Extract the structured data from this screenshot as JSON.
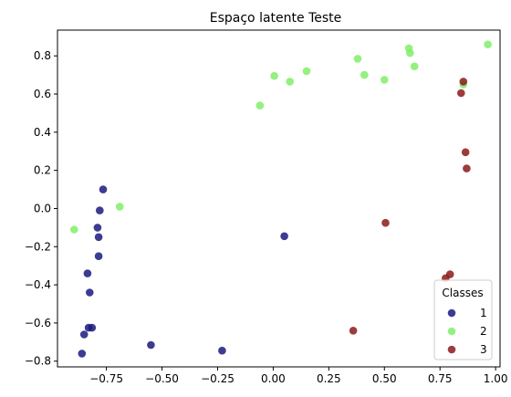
{
  "chart_data": {
    "type": "scatter",
    "title": "Espaço latente Teste",
    "xlabel": "",
    "ylabel": "",
    "xlim": [
      -0.97,
      1.02
    ],
    "ylim": [
      -0.83,
      0.935
    ],
    "xticks": [
      -0.75,
      -0.5,
      -0.25,
      0.0,
      0.25,
      0.5,
      0.75,
      1.0
    ],
    "xtick_labels": [
      "−0.75",
      "−0.50",
      "−0.25",
      "0.00",
      "0.25",
      "0.50",
      "0.75",
      "1.00"
    ],
    "yticks": [
      -0.8,
      -0.6,
      -0.4,
      -0.2,
      0.0,
      0.2,
      0.4,
      0.6,
      0.8
    ],
    "ytick_labels": [
      "−0.8",
      "−0.6",
      "−0.4",
      "−0.2",
      "0.0",
      "0.2",
      "0.4",
      "0.6",
      "0.8"
    ],
    "grid": false,
    "legend": {
      "title": "Classes",
      "placement": "lower-right"
    },
    "series": [
      {
        "name": "1",
        "color": "#1a1a80",
        "points": [
          [
            -0.765,
            0.1
          ],
          [
            -0.78,
            -0.01
          ],
          [
            -0.79,
            -0.1
          ],
          [
            -0.785,
            -0.15
          ],
          [
            -0.785,
            -0.25
          ],
          [
            -0.835,
            -0.34
          ],
          [
            -0.825,
            -0.44
          ],
          [
            -0.83,
            -0.625
          ],
          [
            -0.815,
            -0.625
          ],
          [
            -0.85,
            -0.66
          ],
          [
            -0.86,
            -0.76
          ],
          [
            -0.55,
            -0.715
          ],
          [
            -0.23,
            -0.745
          ],
          [
            0.05,
            -0.145
          ]
        ]
      },
      {
        "name": "2",
        "color": "#80ee6a",
        "points": [
          [
            -0.895,
            -0.11
          ],
          [
            -0.69,
            0.01
          ],
          [
            -0.06,
            0.54
          ],
          [
            0.005,
            0.695
          ],
          [
            0.075,
            0.665
          ],
          [
            0.15,
            0.72
          ],
          [
            0.38,
            0.785
          ],
          [
            0.41,
            0.7
          ],
          [
            0.5,
            0.675
          ],
          [
            0.61,
            0.84
          ],
          [
            0.615,
            0.815
          ],
          [
            0.635,
            0.745
          ],
          [
            0.855,
            0.65
          ],
          [
            0.965,
            0.86
          ]
        ]
      },
      {
        "name": "3",
        "color": "#8b1a1a",
        "points": [
          [
            0.36,
            -0.64
          ],
          [
            0.505,
            -0.075
          ],
          [
            0.775,
            -0.365
          ],
          [
            0.795,
            -0.345
          ],
          [
            0.845,
            0.605
          ],
          [
            0.855,
            0.665
          ],
          [
            0.865,
            0.295
          ],
          [
            0.87,
            0.21
          ]
        ]
      }
    ]
  }
}
